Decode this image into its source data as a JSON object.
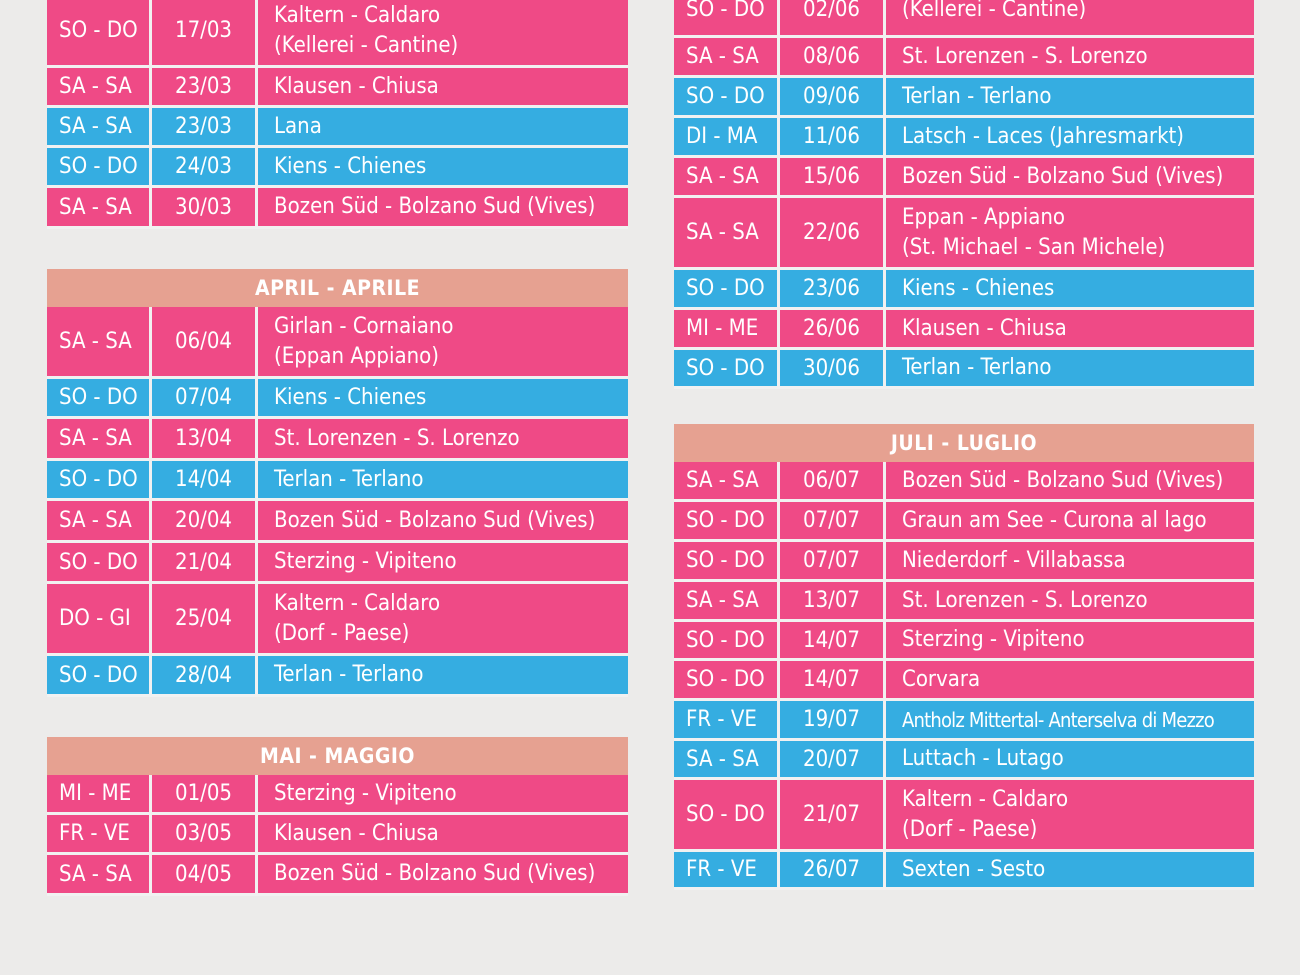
{
  "left": {
    "march": [
      {
        "day": "SO - DO",
        "date": "17/03",
        "place": [
          "Kaltern - Caldaro",
          "(Kellerei - Cantine)"
        ],
        "color": "pink"
      },
      {
        "day": "SA - SA",
        "date": "23/03",
        "place": [
          "Klausen - Chiusa"
        ],
        "color": "pink"
      },
      {
        "day": "SA - SA",
        "date": "23/03",
        "place": [
          "Lana"
        ],
        "color": "blue"
      },
      {
        "day": "SO - DO",
        "date": "24/03",
        "place": [
          "Kiens - Chienes"
        ],
        "color": "blue"
      },
      {
        "day": "SA - SA",
        "date": "30/03",
        "place": [
          "Bozen Süd - Bolzano Sud (Vives)"
        ],
        "color": "pink"
      }
    ],
    "april_title": "APRIL - APRILE",
    "april": [
      {
        "day": "SA - SA",
        "date": "06/04",
        "place": [
          "Girlan - Cornaiano",
          "(Eppan Appiano)"
        ],
        "color": "pink"
      },
      {
        "day": "SO - DO",
        "date": "07/04",
        "place": [
          "Kiens - Chienes"
        ],
        "color": "blue"
      },
      {
        "day": "SA - SA",
        "date": "13/04",
        "place": [
          "St. Lorenzen - S. Lorenzo"
        ],
        "color": "pink"
      },
      {
        "day": "SO - DO",
        "date": "14/04",
        "place": [
          "Terlan - Terlano"
        ],
        "color": "blue"
      },
      {
        "day": "SA - SA",
        "date": "20/04",
        "place": [
          "Bozen Süd - Bolzano Sud (Vives)"
        ],
        "color": "pink"
      },
      {
        "day": "SO - DO",
        "date": "21/04",
        "place": [
          "Sterzing - Vipiteno"
        ],
        "color": "pink"
      },
      {
        "day": "DO - GI",
        "date": "25/04",
        "place": [
          "Kaltern - Caldaro",
          "(Dorf - Paese)"
        ],
        "color": "pink"
      },
      {
        "day": "SO - DO",
        "date": "28/04",
        "place": [
          "Terlan - Terlano"
        ],
        "color": "blue"
      }
    ],
    "may_title": "MAI - MAGGIO",
    "may": [
      {
        "day": "MI - ME",
        "date": "01/05",
        "place": [
          "Sterzing - Vipiteno"
        ],
        "color": "pink"
      },
      {
        "day": "FR - VE",
        "date": "03/05",
        "place": [
          "Klausen - Chiusa"
        ],
        "color": "pink"
      },
      {
        "day": "SA - SA",
        "date": "04/05",
        "place": [
          "Bozen Süd - Bolzano Sud (Vives)"
        ],
        "color": "pink"
      }
    ]
  },
  "right": {
    "june": [
      {
        "day": "SO - DO",
        "date": "02/06",
        "place": [
          "(Kellerei - Cantine)"
        ],
        "color": "pink"
      },
      {
        "day": "SA - SA",
        "date": "08/06",
        "place": [
          "St. Lorenzen - S. Lorenzo"
        ],
        "color": "pink"
      },
      {
        "day": "SO - DO",
        "date": "09/06",
        "place": [
          "Terlan - Terlano"
        ],
        "color": "blue"
      },
      {
        "day": "DI - MA",
        "date": "11/06",
        "place": [
          "Latsch - Laces (Jahresmarkt)"
        ],
        "color": "blue"
      },
      {
        "day": "SA - SA",
        "date": "15/06",
        "place": [
          "Bozen Süd - Bolzano Sud (Vives)"
        ],
        "color": "pink"
      },
      {
        "day": "SA - SA",
        "date": "22/06",
        "place": [
          "Eppan - Appiano",
          "(St. Michael - San Michele)"
        ],
        "color": "pink"
      },
      {
        "day": "SO - DO",
        "date": "23/06",
        "place": [
          "Kiens - Chienes"
        ],
        "color": "blue"
      },
      {
        "day": "MI - ME",
        "date": "26/06",
        "place": [
          "Klausen - Chiusa"
        ],
        "color": "pink"
      },
      {
        "day": "SO - DO",
        "date": "30/06",
        "place": [
          "Terlan - Terlano"
        ],
        "color": "blue"
      }
    ],
    "july_title": "JULI - LUGLIO",
    "july": [
      {
        "day": "SA - SA",
        "date": "06/07",
        "place": [
          "Bozen Süd - Bolzano Sud (Vives)"
        ],
        "color": "pink"
      },
      {
        "day": "SO - DO",
        "date": "07/07",
        "place": [
          "Graun am See - Curona al lago"
        ],
        "color": "pink"
      },
      {
        "day": "SO - DO",
        "date": "07/07",
        "place": [
          "Niederdorf - Villabassa"
        ],
        "color": "pink"
      },
      {
        "day": "SA - SA",
        "date": "13/07",
        "place": [
          "St. Lorenzen - S. Lorenzo"
        ],
        "color": "pink"
      },
      {
        "day": "SO - DO",
        "date": "14/07",
        "place": [
          "Sterzing - Vipiteno"
        ],
        "color": "pink"
      },
      {
        "day": "SO - DO",
        "date": "14/07",
        "place": [
          "Corvara"
        ],
        "color": "pink"
      },
      {
        "day": "FR - VE",
        "date": "19/07",
        "place": [
          "Antholz Mittertal- Anterselva di Mezzo"
        ],
        "color": "blue"
      },
      {
        "day": "SA - SA",
        "date": "20/07",
        "place": [
          "Luttach - Lutago"
        ],
        "color": "blue"
      },
      {
        "day": "SO - DO",
        "date": "21/07",
        "place": [
          "Kaltern - Caldaro",
          "(Dorf - Paese)"
        ],
        "color": "pink"
      },
      {
        "day": "FR - VE",
        "date": "26/07",
        "place": [
          "Sexten - Sesto"
        ],
        "color": "blue"
      }
    ]
  }
}
